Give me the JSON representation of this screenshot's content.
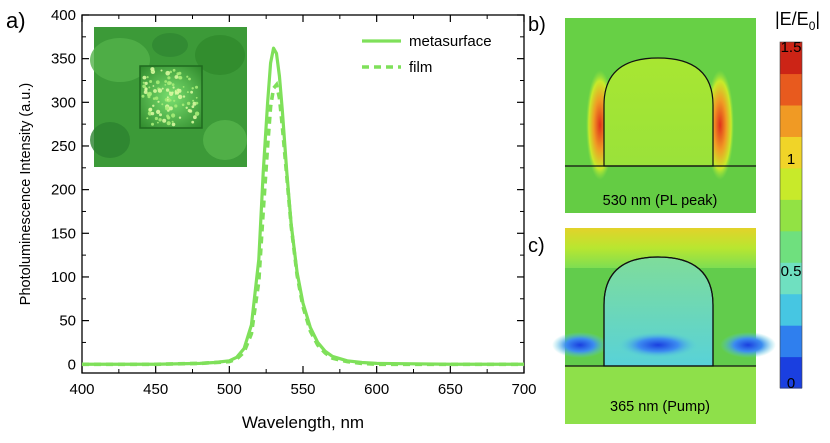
{
  "panels": {
    "a": "a)",
    "b": "b)",
    "c": "c)"
  },
  "chart_data": {
    "type": "line",
    "xlabel": "Wavelength, nm",
    "ylabel": "Photoluminescence Intensity (a.u.)",
    "xlim": [
      400,
      700
    ],
    "ylim": [
      -10,
      400
    ],
    "xticks": [
      400,
      450,
      500,
      550,
      600,
      650,
      700
    ],
    "yticks": [
      0,
      50,
      100,
      150,
      200,
      250,
      300,
      350,
      400
    ],
    "x": [
      400,
      450,
      480,
      490,
      500,
      505,
      510,
      515,
      520,
      523,
      526,
      528,
      530,
      532,
      534,
      536,
      539,
      542,
      546,
      550,
      555,
      560,
      565,
      570,
      580,
      590,
      600,
      650,
      700
    ],
    "series": [
      {
        "name": "metasurface",
        "style": "solid",
        "color": "#7fe05a",
        "values": [
          0,
          0,
          1,
          2,
          4,
          8,
          18,
          45,
          120,
          220,
          300,
          345,
          362,
          356,
          330,
          290,
          220,
          160,
          105,
          70,
          42,
          25,
          15,
          9,
          4,
          2,
          1,
          0,
          0
        ]
      },
      {
        "name": "film",
        "style": "dashed",
        "color": "#7fe05a",
        "values": [
          0,
          0,
          1,
          2,
          3,
          6,
          14,
          35,
          95,
          175,
          250,
          295,
          316,
          320,
          305,
          272,
          215,
          158,
          102,
          66,
          38,
          22,
          13,
          7,
          3,
          1,
          0,
          0,
          0
        ]
      }
    ]
  },
  "fields": {
    "b_caption": "530 nm (PL peak)",
    "c_caption": "365 nm (Pump)"
  },
  "colorbar": {
    "title_main": "|E/E",
    "title_sub": "0",
    "title_end": "|",
    "range": [
      0,
      1.5
    ],
    "ticks": [
      "1.5",
      "1",
      "0.5",
      "0"
    ],
    "colors": [
      "#1a3fe0",
      "#2f7fee",
      "#46c6e2",
      "#6fe0c0",
      "#6fe07e",
      "#92e244",
      "#c8ea2a",
      "#f0d428",
      "#f09a24",
      "#e85a1e",
      "#cc2416"
    ]
  },
  "colors": {
    "curve": "#7fe05a",
    "inset_bg": "#3c9a38",
    "field_bg": "#67d045",
    "outline": "#111111"
  }
}
